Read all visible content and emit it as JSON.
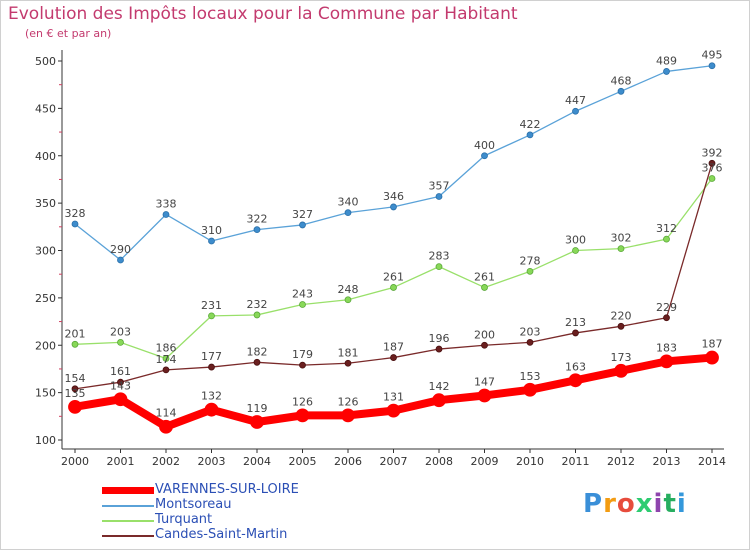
{
  "header": {
    "title": "Evolution des Impôts locaux pour la Commune par Habitant",
    "subtitle": "(en € et par an)"
  },
  "chart_data": {
    "type": "line",
    "title": "Evolution des Impôts locaux pour la Commune par Habitant",
    "subtitle": "(en € et par an)",
    "categories": [
      "2000",
      "2001",
      "2002",
      "2003",
      "2004",
      "2005",
      "2006",
      "2007",
      "2008",
      "2009",
      "2010",
      "2011",
      "2012",
      "2013",
      "2014"
    ],
    "ylim": [
      100,
      500
    ],
    "yticks": [
      100,
      150,
      200,
      250,
      300,
      350,
      400,
      450,
      500
    ],
    "grid": false,
    "legend_position": "bottom-left",
    "series": [
      {
        "name": "VARENNES-SUR-LOIRE",
        "color": "#ff0000",
        "values": [
          135,
          143,
          114,
          132,
          119,
          126,
          126,
          131,
          142,
          147,
          153,
          163,
          173,
          183,
          187
        ]
      },
      {
        "name": "Montsoreau",
        "color": "#5aa2d8",
        "values": [
          328,
          290,
          338,
          310,
          322,
          327,
          340,
          346,
          357,
          400,
          422,
          447,
          468,
          489,
          495
        ]
      },
      {
        "name": "Turquant",
        "color": "#99e06a",
        "values": [
          201,
          203,
          186,
          231,
          232,
          243,
          248,
          261,
          283,
          261,
          278,
          300,
          302,
          312,
          376
        ]
      },
      {
        "name": "Candes-Saint-Martin",
        "color": "#7a2a2a",
        "values": [
          154,
          161,
          174,
          177,
          182,
          179,
          181,
          187,
          196,
          200,
          203,
          213,
          220,
          229,
          392
        ]
      }
    ]
  },
  "logo": {
    "letters": [
      "P",
      "r",
      "o",
      "x",
      "i",
      "t",
      "i"
    ],
    "colors": [
      "#3a8fd8",
      "#f39c12",
      "#e74c3c",
      "#2ecc71",
      "#8e44ad",
      "#27ae60",
      "#3498db"
    ]
  }
}
